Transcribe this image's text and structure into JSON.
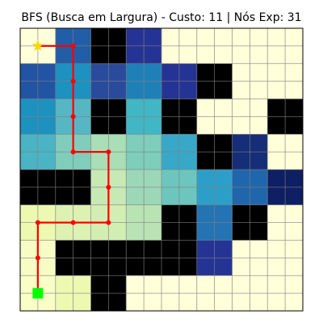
{
  "chart_data": {
    "type": "heatmap",
    "title": "BFS (Busca em Largura) - Custo: 11 | Nós Exp: 31",
    "rows": 8,
    "cols": 8,
    "grid": true,
    "wall_color": "#000000",
    "path_color": "#ff0000",
    "start_marker": {
      "shape": "star",
      "color": "#ffd700",
      "cell": [
        0,
        0
      ]
    },
    "goal_marker": {
      "shape": "square",
      "color": "#00ff00",
      "cell": [
        0,
        7
      ]
    },
    "path": [
      [
        0,
        0
      ],
      [
        1,
        0
      ],
      [
        1,
        1
      ],
      [
        1,
        2
      ],
      [
        1,
        3
      ],
      [
        2,
        3
      ],
      [
        2,
        4
      ],
      [
        2,
        5
      ],
      [
        1,
        5
      ],
      [
        0,
        5
      ],
      [
        0,
        6
      ],
      [
        0,
        7
      ]
    ],
    "cells": [
      [
        "#ffffd9",
        "#225ea8",
        "#000000",
        "#253494",
        "#ffffd9",
        "#ffffd9",
        "#ffffd9",
        "#ffffd9"
      ],
      [
        "#2254a4",
        "#1d91c0",
        "#2a4b9c",
        "#1f80b8",
        "#253494",
        "#000000",
        "#ffffd9",
        "#ffffd9"
      ],
      [
        "#1d91c0",
        "#56b6c3",
        "#000000",
        "#41b6c4",
        "#000000",
        "#ffffd9",
        "#ffffd9",
        "#000000"
      ],
      [
        "#4ab4c4",
        "#80cdbb",
        "#aadeb6",
        "#7fcdbb",
        "#38a8c8",
        "#000000",
        "#162d78",
        "#ffffd9"
      ],
      [
        "#000000",
        "#000000",
        "#c7e9b4",
        "#9cd8b8",
        "#6cc6bd",
        "#2c9fc8",
        "#2066ac",
        "#0e1f64"
      ],
      [
        "#edf8b1",
        "#dcf1b2",
        "#d3eeb3",
        "#b9e3b5",
        "#000000",
        "#2474b4",
        "#000000",
        "#ffffd9"
      ],
      [
        "#f7fcc4",
        "#000000",
        "#000000",
        "#000000",
        "#000000",
        "#253494",
        "#ffffd9",
        "#ffffd9"
      ],
      [
        "#f9fdc6",
        "#edf8b1",
        "#000000",
        "#ffffd9",
        "#ffffd9",
        "#ffffd9",
        "#ffffd9",
        "#ffffd9"
      ]
    ]
  }
}
